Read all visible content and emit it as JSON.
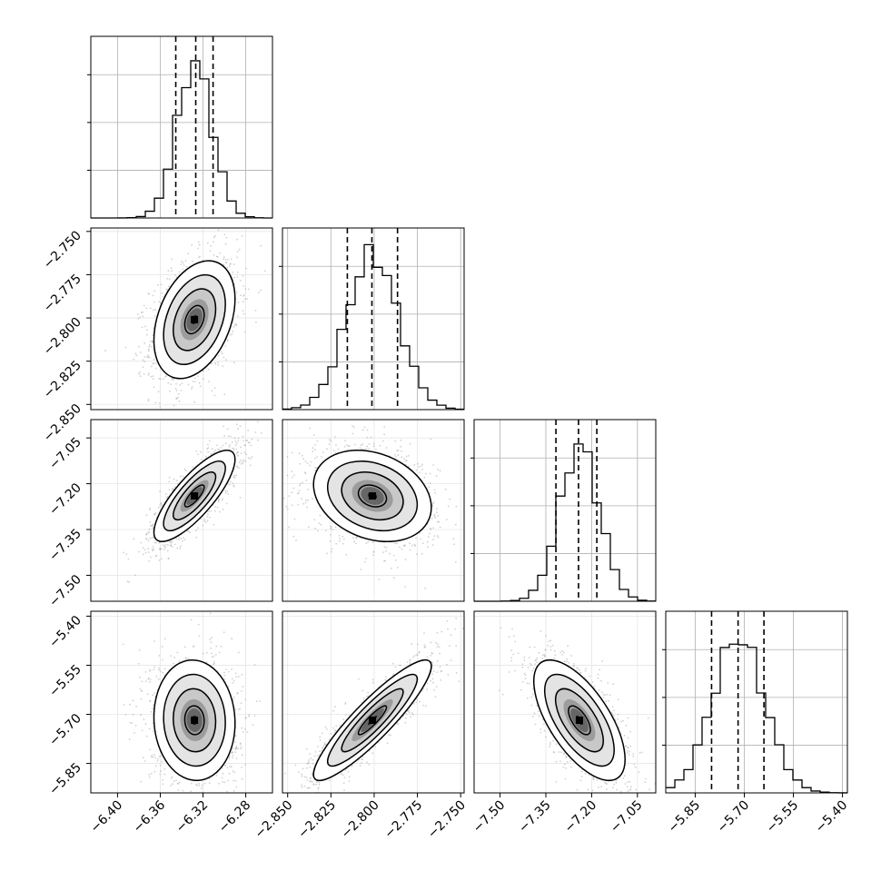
{
  "chart_data": {
    "type": "corner",
    "title": "",
    "parameters": [
      {
        "range": [
          -6.425,
          -6.255
        ],
        "ticks": [
          "-6.40",
          "-6.36",
          "-6.32",
          "-6.28"
        ],
        "tick_values": [
          -6.4,
          -6.36,
          -6.32,
          -6.28
        ],
        "quantiles": [
          -6.3455,
          -6.3268,
          -6.3106
        ],
        "peak": -6.328,
        "sigma": 0.0165
      },
      {
        "range": [
          -2.853,
          -2.748
        ],
        "ticks": [
          "-2.850",
          "-2.825",
          "-2.800",
          "-2.775",
          "-2.750"
        ],
        "tick_values": [
          -2.85,
          -2.825,
          -2.8,
          -2.775,
          -2.75
        ],
        "quantiles": [
          -2.8155,
          -2.8013,
          -2.7865
        ],
        "peak": -2.801,
        "sigma": 0.0148
      },
      {
        "range": [
          -7.585,
          -6.99
        ],
        "ticks": [
          "-7.50",
          "-7.35",
          "-7.20",
          "-7.05"
        ],
        "tick_values": [
          -7.5,
          -7.35,
          -7.2,
          -7.05
        ],
        "quantiles": [
          -7.317,
          -7.243,
          -7.183
        ],
        "peak": -7.24,
        "sigma": 0.065
      },
      {
        "range": [
          -5.94,
          -5.385
        ],
        "ticks": [
          "-5.85",
          "-5.70",
          "-5.55",
          "-5.40"
        ],
        "tick_values": [
          -5.85,
          -5.7,
          -5.55,
          -5.4
        ],
        "quantiles": [
          -5.8,
          -5.719,
          -5.64
        ],
        "peak": -5.718,
        "sigma": 0.08
      }
    ],
    "correlations": {
      "1-0": 0.35,
      "2-0": 0.8,
      "2-1": -0.25,
      "3-0": -0.05,
      "3-1": 0.9,
      "3-2": -0.65
    },
    "grid": true,
    "colors": {
      "line": "#000000",
      "grid": "#b0b0b0",
      "points": "#9a9a9a"
    }
  }
}
